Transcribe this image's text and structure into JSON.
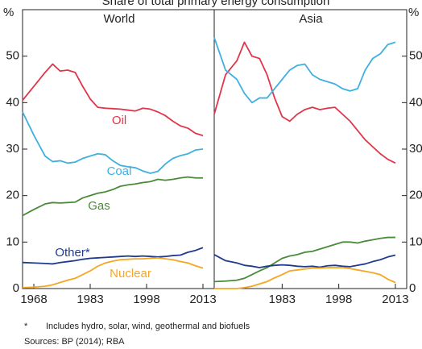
{
  "title": "Share of total primary energy consumption",
  "chart_data": [
    {
      "type": "line",
      "title": "World",
      "ylabel": "%",
      "x": [
        1965,
        1968,
        1971,
        1973,
        1975,
        1977,
        1979,
        1981,
        1983,
        1985,
        1987,
        1989,
        1991,
        1993,
        1995,
        1997,
        1999,
        2001,
        2003,
        2005,
        2007,
        2009,
        2011,
        2013
      ],
      "xlim": [
        1965,
        2016
      ],
      "xticks": [
        1968,
        1983,
        1998,
        2013
      ],
      "ylim": [
        0,
        60
      ],
      "yticks": [
        0,
        10,
        20,
        30,
        40,
        50
      ],
      "series": [
        {
          "name": "Oil",
          "color": "#e0364a",
          "values": [
            40.5,
            43.5,
            46.5,
            48.3,
            46.8,
            47,
            46.5,
            43.5,
            40.8,
            39,
            38.8,
            38.7,
            38.6,
            38.4,
            38.2,
            38.8,
            38.6,
            38,
            37.2,
            36,
            35,
            34.5,
            33.4,
            32.9
          ]
        },
        {
          "name": "Coal",
          "color": "#3fb0e0",
          "values": [
            38,
            33,
            28.5,
            27.3,
            27.5,
            27,
            27.2,
            28,
            28.5,
            29,
            28.8,
            27.5,
            26.5,
            26.2,
            26,
            25.3,
            24.8,
            25.2,
            26.8,
            28,
            28.6,
            29,
            29.8,
            30
          ]
        },
        {
          "name": "Gas",
          "color": "#4a8b3a",
          "values": [
            15.7,
            17,
            18.2,
            18.5,
            18.4,
            18.5,
            18.6,
            19.5,
            20,
            20.5,
            20.8,
            21.3,
            22,
            22.3,
            22.5,
            22.8,
            23,
            23.5,
            23.3,
            23.5,
            23.8,
            24,
            23.8,
            23.8
          ]
        },
        {
          "name": "Other*",
          "color": "#1f3c8c",
          "values": [
            5.6,
            5.5,
            5.4,
            5.3,
            5.6,
            5.8,
            6,
            6.3,
            6.5,
            6.6,
            6.7,
            6.8,
            6.9,
            7,
            6.9,
            7,
            6.9,
            6.8,
            6.9,
            7.1,
            7.2,
            7.8,
            8.2,
            8.8
          ]
        },
        {
          "name": "Nuclear",
          "color": "#f5a623",
          "values": [
            0.2,
            0.3,
            0.5,
            0.8,
            1.3,
            1.8,
            2.2,
            3,
            3.8,
            4.8,
            5.5,
            5.9,
            6.2,
            6.3,
            6.4,
            6.4,
            6.5,
            6.6,
            6.4,
            6.2,
            5.8,
            5.5,
            4.9,
            4.4
          ]
        }
      ]
    },
    {
      "type": "line",
      "title": "Asia",
      "ylabel": "%",
      "x": [
        1965,
        1968,
        1971,
        1973,
        1975,
        1977,
        1979,
        1981,
        1983,
        1985,
        1987,
        1989,
        1991,
        1993,
        1995,
        1997,
        1999,
        2001,
        2003,
        2005,
        2007,
        2009,
        2011,
        2013
      ],
      "xlim": [
        1965,
        2016
      ],
      "xticks": [
        1983,
        1998,
        2013
      ],
      "ylim": [
        0,
        60
      ],
      "yticks": [
        0,
        10,
        20,
        30,
        40,
        50
      ],
      "series": [
        {
          "color": "#e0364a",
          "values": [
            37.5,
            46,
            49,
            53,
            50,
            49.5,
            46,
            41,
            37,
            36,
            37.5,
            38.5,
            39,
            38.5,
            38.8,
            39,
            37.5,
            36,
            34,
            32,
            30.5,
            29,
            27.8,
            27
          ]
        },
        {
          "color": "#3fb0e0",
          "values": [
            54,
            47,
            45,
            42,
            40,
            41,
            41,
            43,
            45,
            47,
            48,
            48.3,
            46,
            45,
            44.5,
            44,
            43,
            42.5,
            43,
            47,
            49.5,
            50.5,
            52.5,
            53
          ]
        },
        {
          "color": "#4a8b3a",
          "values": [
            1.5,
            1.6,
            1.8,
            2.2,
            3,
            3.8,
            4.5,
            5.5,
            6.5,
            7,
            7.3,
            7.8,
            8,
            8.5,
            9,
            9.5,
            10,
            10,
            9.8,
            10.2,
            10.5,
            10.8,
            11,
            11
          ]
        },
        {
          "color": "#1f3c8c",
          "values": [
            7.3,
            6,
            5.5,
            5,
            4.8,
            4.5,
            4.8,
            5,
            5.1,
            5,
            4.8,
            4.7,
            4.8,
            4.6,
            4.9,
            5,
            4.8,
            4.7,
            5,
            5.3,
            5.8,
            6.2,
            6.8,
            7.2
          ]
        },
        {
          "color": "#f5a623",
          "values": [
            0,
            0,
            0,
            0.2,
            0.5,
            1,
            1.5,
            2.3,
            3,
            3.8,
            4,
            4.2,
            4.4,
            4.4,
            4.5,
            4.5,
            4.5,
            4.3,
            4,
            3.7,
            3.4,
            3,
            2,
            1.3
          ]
        }
      ]
    }
  ],
  "footnote": {
    "marker": "*",
    "text": "Includes hydro, solar, wind, geothermal and biofuels"
  },
  "sources": "Sources:  BP (2014); RBA"
}
